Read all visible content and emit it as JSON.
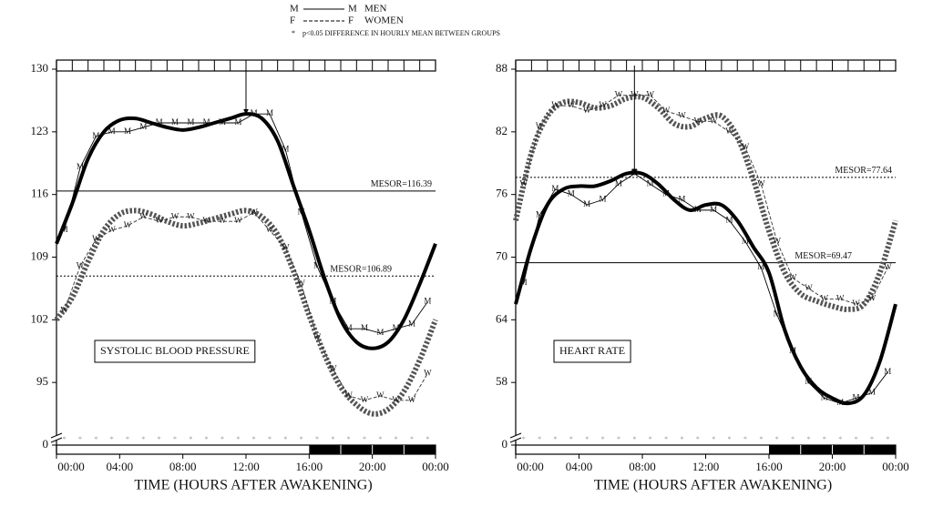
{
  "legend": [
    {
      "left": "M",
      "right": "M",
      "label": "MEN",
      "style": "solid"
    },
    {
      "left": "F",
      "right": "F",
      "label": "WOMEN",
      "style": "dashed"
    }
  ],
  "note": {
    "symbol": "*",
    "text": "p<0.05  DIFFERENCE IN HOURLY MEAN BETWEEN GROUPS"
  },
  "chart_data": [
    {
      "type": "line",
      "label": "SYSTOLIC BLOOD PRESSURE",
      "xlabel": "TIME (HOURS AFTER AWAKENING)",
      "xlim": [
        0,
        24
      ],
      "xticks": [
        {
          "value": 0,
          "label": "00:00"
        },
        {
          "value": 4,
          "label": "04:00"
        },
        {
          "value": 8,
          "label": "08:00"
        },
        {
          "value": 12,
          "label": "12:00"
        },
        {
          "value": 16,
          "label": "16:00"
        },
        {
          "value": 20,
          "label": "20:00"
        },
        {
          "value": 24,
          "label": "00:00"
        }
      ],
      "ylim": [
        88,
        130
      ],
      "yticks": [
        0,
        95,
        102,
        109,
        116,
        123,
        130
      ],
      "axis_break": true,
      "night": [
        16,
        24
      ],
      "significant": true,
      "mesors": [
        {
          "label": "MESOR=116.39",
          "value": 116.39,
          "style": "solid"
        },
        {
          "label": "MESOR=106.89",
          "value": 106.89,
          "style": "dotted"
        }
      ],
      "acrophase": {
        "x": 12,
        "y": 125
      },
      "series": [
        {
          "kind": "fit",
          "style": "solid",
          "color": "#000",
          "x": [
            0,
            1,
            2,
            3,
            4,
            5,
            6,
            7,
            8,
            9,
            10,
            11,
            12,
            13,
            14,
            15,
            16,
            17,
            18,
            19,
            20,
            21,
            22,
            23,
            24
          ],
          "values": [
            110.5,
            115,
            120,
            123,
            124.3,
            124.5,
            124,
            123.5,
            123.2,
            123.5,
            124,
            124.5,
            125,
            124.5,
            122,
            117,
            112,
            106.5,
            102,
            99.5,
            98.8,
            99.5,
            102,
            106,
            110.5
          ]
        },
        {
          "kind": "fit",
          "style": "dotted",
          "color": "#555",
          "x": [
            0,
            1,
            2,
            3,
            4,
            5,
            6,
            7,
            8,
            9,
            10,
            11,
            12,
            13,
            14,
            15,
            16,
            17,
            18,
            19,
            20,
            21,
            22,
            23,
            24
          ],
          "values": [
            102,
            104.5,
            108.5,
            112,
            113.8,
            114.2,
            113.8,
            113,
            112.5,
            112.8,
            113.3,
            113.8,
            114.2,
            113.5,
            111.5,
            107.5,
            102.5,
            98,
            94.5,
            92.5,
            91.5,
            92,
            94,
            97.5,
            102
          ]
        },
        {
          "kind": "points",
          "marker": "M",
          "style": "solid",
          "color": "#000",
          "x": [
            0.5,
            1.5,
            2.5,
            3.5,
            4.5,
            5.5,
            6.5,
            7.5,
            8.5,
            9.5,
            10.5,
            11.5,
            12.5,
            13.5,
            14.5,
            15.5,
            16.5,
            17.5,
            18.5,
            19.5,
            20.5,
            21.5,
            22.5,
            23.5
          ],
          "values": [
            112,
            119,
            122.5,
            123,
            123,
            123.5,
            124,
            124,
            124,
            124,
            124,
            124,
            125,
            125,
            121,
            114,
            108,
            104,
            101,
            101,
            100.5,
            101,
            101.5,
            104
          ]
        },
        {
          "kind": "points",
          "marker": "W",
          "style": "dashed",
          "color": "#333",
          "x": [
            0.5,
            1.5,
            2.5,
            3.5,
            4.5,
            5.5,
            6.5,
            7.5,
            8.5,
            9.5,
            10.5,
            11.5,
            12.5,
            13.5,
            14.5,
            15.5,
            16.5,
            17.5,
            18.5,
            19.5,
            20.5,
            21.5,
            22.5,
            23.5
          ],
          "values": [
            103,
            108,
            111,
            112,
            112.5,
            113.5,
            113,
            113.5,
            113.5,
            113,
            113,
            113,
            114,
            112,
            110,
            106,
            100,
            96.5,
            93.5,
            93,
            93.5,
            93,
            93,
            96
          ]
        }
      ]
    },
    {
      "type": "line",
      "label": "HEART RATE",
      "xlabel": "TIME (HOURS AFTER AWAKENING)",
      "xlim": [
        0,
        24
      ],
      "xticks": [
        {
          "value": 0,
          "label": "00:00"
        },
        {
          "value": 4,
          "label": "04:00"
        },
        {
          "value": 8,
          "label": "08:00"
        },
        {
          "value": 12,
          "label": "12:00"
        },
        {
          "value": 16,
          "label": "16:00"
        },
        {
          "value": 20,
          "label": "20:00"
        },
        {
          "value": 24,
          "label": "00:00"
        }
      ],
      "ylim": [
        52,
        88
      ],
      "yticks": [
        0,
        58,
        64,
        70,
        76,
        82,
        88
      ],
      "axis_break": true,
      "night": [
        16,
        24
      ],
      "significant": true,
      "mesors": [
        {
          "label": "MESOR=77.64",
          "value": 77.64,
          "style": "dotted"
        },
        {
          "label": "MESOR=69.47",
          "value": 69.47,
          "style": "solid"
        }
      ],
      "acrophase": {
        "x": 7.5,
        "y": 78
      },
      "series": [
        {
          "kind": "fit",
          "style": "solid",
          "color": "#000",
          "x": [
            0,
            1,
            2,
            3,
            4,
            5,
            6,
            7,
            8,
            9,
            10,
            11,
            12,
            13,
            14,
            15,
            16,
            17,
            18,
            19,
            20,
            21,
            22,
            23,
            24
          ],
          "values": [
            65.5,
            71,
            75,
            76.5,
            76.8,
            76.8,
            77.3,
            78,
            78,
            77,
            75.5,
            74.5,
            75,
            75,
            73.5,
            71,
            68.5,
            63,
            59.5,
            57.5,
            56.5,
            56,
            56.8,
            60,
            65.5
          ]
        },
        {
          "kind": "fit",
          "style": "dotted",
          "color": "#555",
          "x": [
            0,
            1,
            2,
            3,
            4,
            5,
            6,
            7,
            8,
            9,
            10,
            11,
            12,
            13,
            14,
            15,
            16,
            17,
            18,
            19,
            20,
            21,
            22,
            23,
            24
          ],
          "values": [
            73.5,
            80,
            83.5,
            84.8,
            84.8,
            84.3,
            84.5,
            85.2,
            85.3,
            84.3,
            82.8,
            82.5,
            83.3,
            83.5,
            81.5,
            77.5,
            72.5,
            68.5,
            66.5,
            65.8,
            65.3,
            65,
            65.5,
            68.5,
            73.5
          ]
        },
        {
          "kind": "points",
          "marker": "M",
          "style": "solid",
          "color": "#000",
          "x": [
            0.5,
            1.5,
            2.5,
            3.5,
            4.5,
            5.5,
            6.5,
            7.5,
            8.5,
            9.5,
            10.5,
            11.5,
            12.5,
            13.5,
            14.5,
            15.5,
            16.5,
            17.5,
            18.5,
            19.5,
            20.5,
            21.5,
            22.5,
            23.5
          ],
          "values": [
            67.5,
            74,
            76.5,
            76,
            75,
            75.5,
            77,
            78,
            77,
            76,
            75.5,
            74.5,
            74.5,
            73.5,
            71.5,
            69,
            64.5,
            61,
            58,
            56.5,
            56,
            56.5,
            57,
            59
          ]
        },
        {
          "kind": "points",
          "marker": "W",
          "style": "dashed",
          "color": "#333",
          "x": [
            0.5,
            1.5,
            2.5,
            3.5,
            4.5,
            5.5,
            6.5,
            7.5,
            8.5,
            9.5,
            10.5,
            11.5,
            12.5,
            13.5,
            14.5,
            15.5,
            16.5,
            17.5,
            18.5,
            19.5,
            20.5,
            21.5,
            22.5,
            23.5
          ],
          "values": [
            77,
            82.5,
            84.5,
            84.5,
            84,
            84.5,
            85.5,
            85.5,
            85.5,
            84,
            83.5,
            83,
            83,
            82,
            80.5,
            77,
            71.5,
            68,
            67,
            66,
            66,
            65.5,
            66,
            69
          ]
        }
      ]
    }
  ]
}
